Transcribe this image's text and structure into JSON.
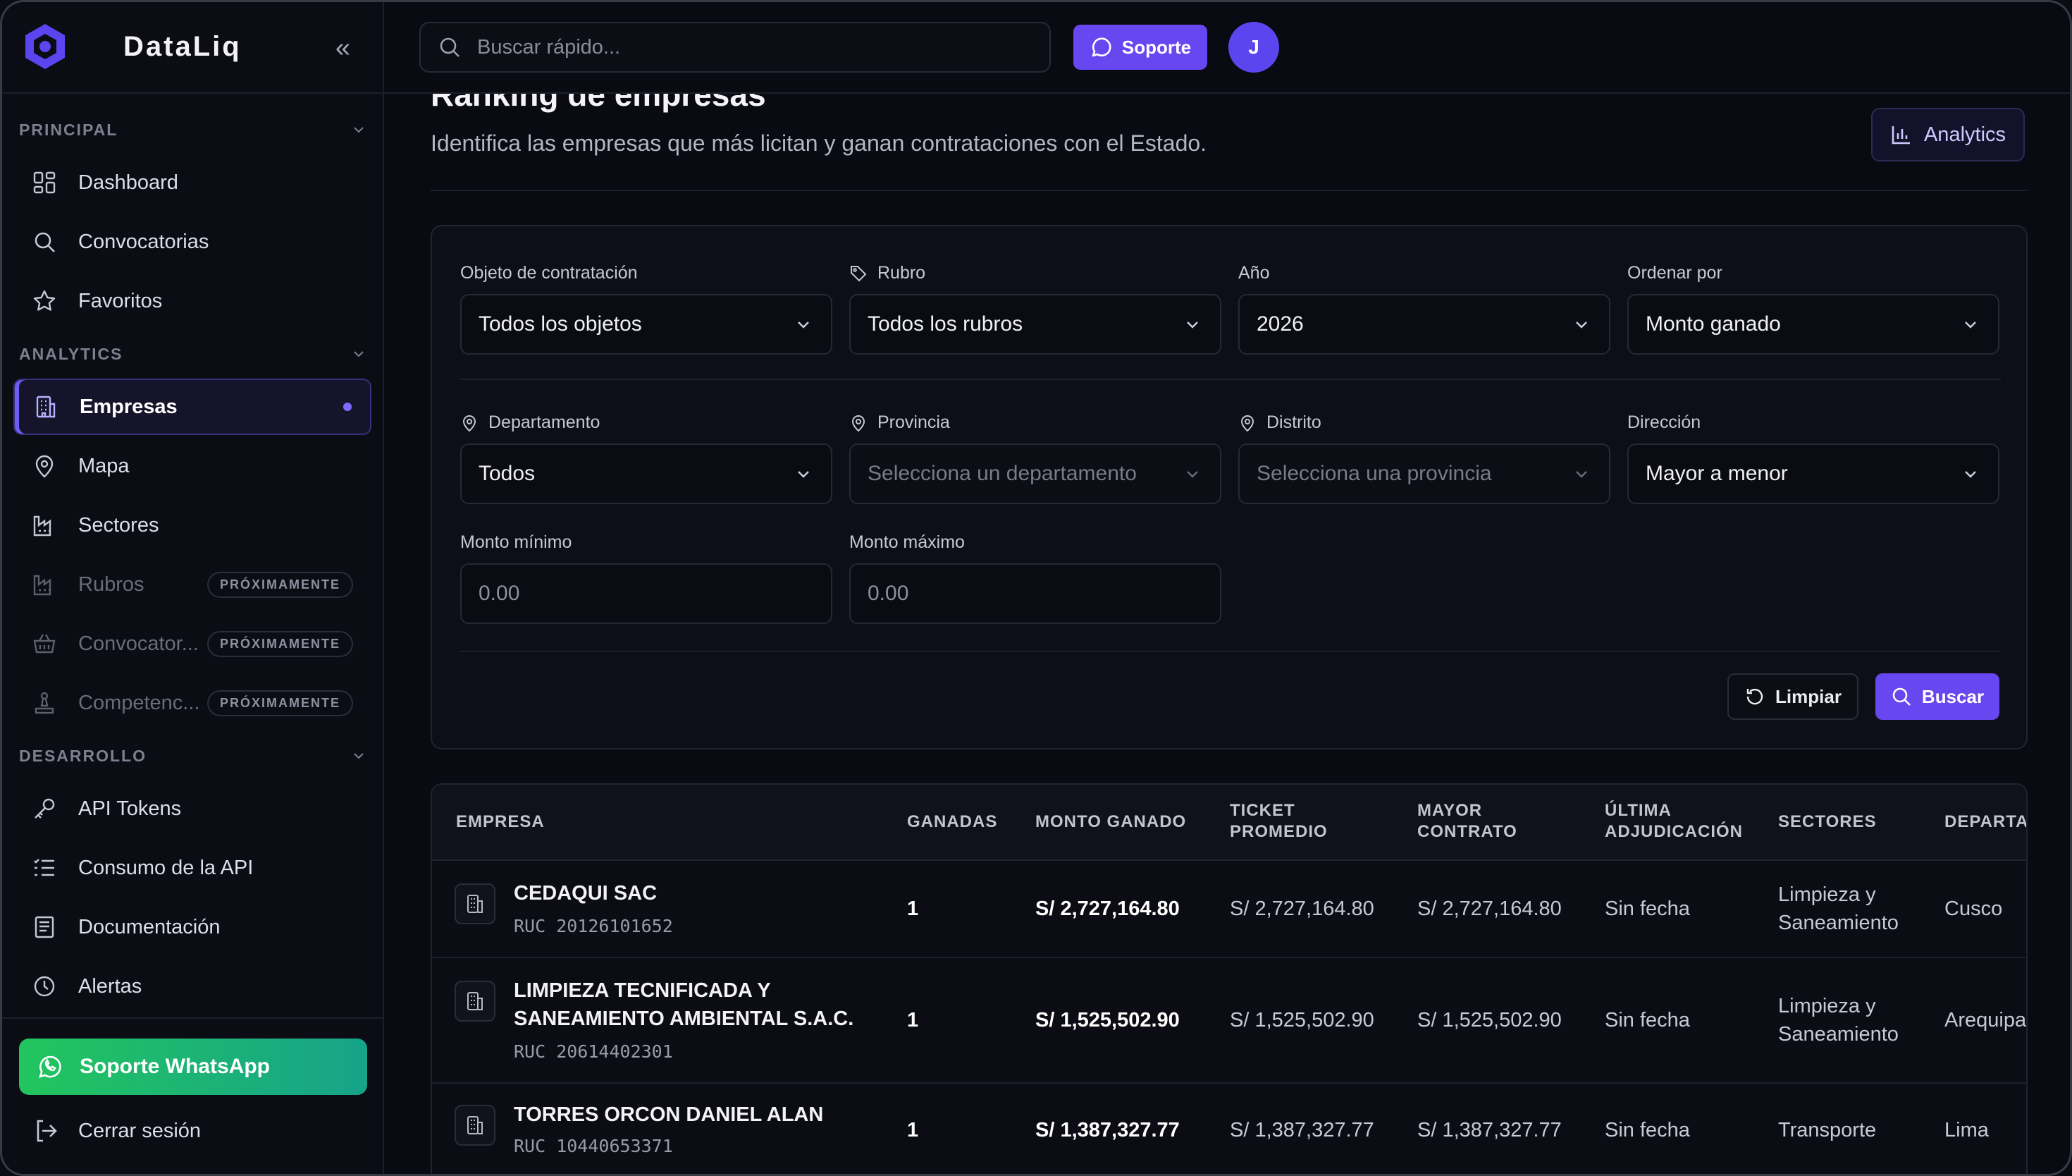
{
  "brand": {
    "name": "DataLiq"
  },
  "sidebar": {
    "sections": [
      {
        "title": "PRINCIPAL",
        "items": [
          {
            "label": "Dashboard",
            "icon": "dashboard-icon"
          },
          {
            "label": "Convocatorias",
            "icon": "search-icon"
          },
          {
            "label": "Favoritos",
            "icon": "star-icon"
          }
        ]
      },
      {
        "title": "ANALYTICS",
        "items": [
          {
            "label": "Empresas",
            "icon": "building-icon",
            "active": true
          },
          {
            "label": "Mapa",
            "icon": "map-pin-icon"
          },
          {
            "label": "Sectores",
            "icon": "factory-icon"
          },
          {
            "label": "Rubros",
            "icon": "factory-icon",
            "badge": "PRÓXIMAMENTE"
          },
          {
            "label": "Convocator...",
            "icon": "basket-icon",
            "badge": "PRÓXIMAMENTE"
          },
          {
            "label": "Competenc...",
            "icon": "podium-icon",
            "badge": "PRÓXIMAMENTE"
          }
        ]
      },
      {
        "title": "DESARROLLO",
        "items": [
          {
            "label": "API Tokens",
            "icon": "key-icon"
          },
          {
            "label": "Consumo de la API",
            "icon": "list-icon"
          },
          {
            "label": "Documentación",
            "icon": "document-icon"
          },
          {
            "label": "Alertas",
            "icon": "clock-icon"
          }
        ]
      }
    ],
    "whatsapp_label": "Soporte WhatsApp",
    "logout_label": "Cerrar sesión"
  },
  "topbar": {
    "search_placeholder": "Buscar rápido...",
    "support_label": "Soporte",
    "avatar_initial": "J"
  },
  "page": {
    "title": "Ranking de empresas",
    "subtitle": "Identifica las empresas que más licitan y ganan contrataciones con el Estado.",
    "analytics_label": "Analytics"
  },
  "filters": {
    "objeto": {
      "label": "Objeto de contratación",
      "value": "Todos los objetos"
    },
    "rubro": {
      "label": "Rubro",
      "value": "Todos los rubros"
    },
    "anio": {
      "label": "Año",
      "value": "2026"
    },
    "ordenar": {
      "label": "Ordenar por",
      "value": "Monto ganado"
    },
    "departamento": {
      "label": "Departamento",
      "value": "Todos"
    },
    "provincia": {
      "label": "Provincia",
      "value": "Selecciona un departamento"
    },
    "distrito": {
      "label": "Distrito",
      "value": "Selecciona una provincia"
    },
    "direccion": {
      "label": "Dirección",
      "value": "Mayor a menor"
    },
    "monto_min": {
      "label": "Monto mínimo",
      "placeholder": "0.00"
    },
    "monto_max": {
      "label": "Monto máximo",
      "placeholder": "0.00"
    },
    "clear_label": "Limpiar",
    "search_label": "Buscar"
  },
  "table": {
    "headers": {
      "empresa": "EMPRESA",
      "ganadas": "GANADAS",
      "monto": "MONTO GANADO",
      "ticket": "TICKET PROMEDIO",
      "mayor": "MAYOR CONTRATO",
      "ultima": "ÚLTIMA ADJUDICACIÓN",
      "sectores": "SECTORES",
      "departamento": "DEPARTAMENTO"
    },
    "rows": [
      {
        "name": "CEDAQUI SAC",
        "ruc": "RUC 20126101652",
        "ganadas": "1",
        "monto": "S/ 2,727,164.80",
        "ticket": "S/ 2,727,164.80",
        "mayor": "S/ 2,727,164.80",
        "ultima": "Sin fecha",
        "sectores": "Limpieza y Saneamiento",
        "departamento": "Cusco"
      },
      {
        "name": "LIMPIEZA TECNIFICADA Y SANEAMIENTO AMBIENTAL S.A.C.",
        "ruc": "RUC 20614402301",
        "ganadas": "1",
        "monto": "S/ 1,525,502.90",
        "ticket": "S/ 1,525,502.90",
        "mayor": "S/ 1,525,502.90",
        "ultima": "Sin fecha",
        "sectores": "Limpieza y Saneamiento",
        "departamento": "Arequipa"
      },
      {
        "name": "TORRES ORCON DANIEL ALAN",
        "ruc": "RUC 10440653371",
        "ganadas": "1",
        "monto": "S/ 1,387,327.77",
        "ticket": "S/ 1,387,327.77",
        "mayor": "S/ 1,387,327.77",
        "ultima": "Sin fecha",
        "sectores": "Transporte",
        "departamento": "Lima"
      }
    ]
  },
  "colors": {
    "accent": "#6747f0",
    "whatsapp": "#22c55e",
    "background": "#0a0a12"
  }
}
